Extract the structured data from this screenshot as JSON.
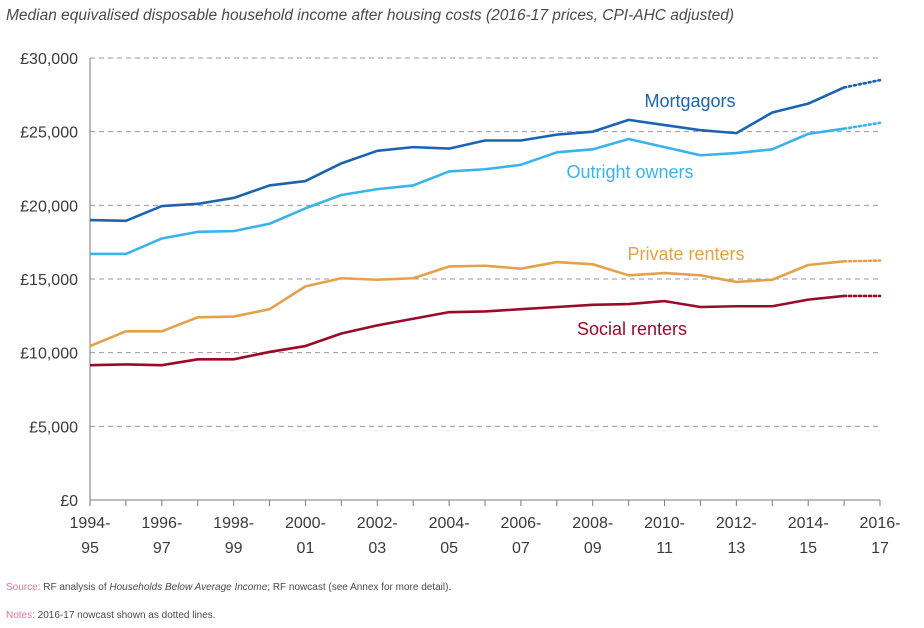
{
  "chart_data": {
    "type": "line",
    "title": "Median equivalised disposable household income after housing costs (2016-17 prices, CPI-AHC adjusted)",
    "xlabel": "",
    "ylabel": "",
    "ylim": [
      0,
      30000
    ],
    "yticks": [
      0,
      5000,
      10000,
      15000,
      20000,
      25000,
      30000
    ],
    "ytick_labels": [
      "£0",
      "£5,000",
      "£10,000",
      "£15,000",
      "£20,000",
      "£25,000",
      "£30,000"
    ],
    "grid": "horizontal dashed",
    "x": [
      "1994-95",
      "1995-96",
      "1996-97",
      "1997-98",
      "1998-99",
      "1999-00",
      "2000-01",
      "2001-02",
      "2002-03",
      "2003-04",
      "2004-05",
      "2005-06",
      "2006-07",
      "2007-08",
      "2008-09",
      "2009-10",
      "2010-11",
      "2011-12",
      "2012-13",
      "2013-14",
      "2014-15",
      "2015-16",
      "2016-17"
    ],
    "xtick_labels": [
      {
        "top": "1994-",
        "bottom": "95"
      },
      {
        "top": "1996-",
        "bottom": "97"
      },
      {
        "top": "1998-",
        "bottom": "99"
      },
      {
        "top": "2000-",
        "bottom": "01"
      },
      {
        "top": "2002-",
        "bottom": "03"
      },
      {
        "top": "2004-",
        "bottom": "05"
      },
      {
        "top": "2006-",
        "bottom": "07"
      },
      {
        "top": "2008-",
        "bottom": "09"
      },
      {
        "top": "2010-",
        "bottom": "11"
      },
      {
        "top": "2012-",
        "bottom": "13"
      },
      {
        "top": "2014-",
        "bottom": "15"
      },
      {
        "top": "2016-",
        "bottom": "17"
      }
    ],
    "nowcast_from": "2015-16",
    "series": [
      {
        "name": "Mortgagors",
        "color": "#1a64b0",
        "values": [
          19000,
          18950,
          19950,
          20100,
          20500,
          21350,
          21650,
          22850,
          23700,
          23950,
          23850,
          24400,
          24400,
          24800,
          25000,
          25800,
          25450,
          25100,
          24900,
          26300,
          26900,
          28000,
          28500
        ]
      },
      {
        "name": "Outright owners",
        "color": "#3ab3ea",
        "values": [
          16700,
          16700,
          17750,
          18200,
          18250,
          18750,
          19800,
          20700,
          21100,
          21350,
          22300,
          22450,
          22750,
          23600,
          23800,
          24500,
          23950,
          23400,
          23550,
          23800,
          24850,
          25200,
          25600
        ]
      },
      {
        "name": "Private renters",
        "color": "#e2a24a",
        "values": [
          10450,
          11450,
          11450,
          12400,
          12450,
          12950,
          14500,
          15050,
          14950,
          15050,
          15850,
          15900,
          15700,
          16150,
          16000,
          15250,
          15400,
          15250,
          14800,
          14950,
          15950,
          16200,
          16250
        ]
      },
      {
        "name": "Social renters",
        "color": "#990b2a",
        "values": [
          9150,
          9200,
          9150,
          9550,
          9550,
          10050,
          10450,
          11300,
          11850,
          12300,
          12750,
          12800,
          12950,
          13100,
          13250,
          13300,
          13500,
          13100,
          13150,
          13150,
          13600,
          13850,
          13850
        ]
      }
    ]
  },
  "footer": {
    "source_label": "Source:",
    "source_text_1": " RF analysis of ",
    "source_text_italic": "Households Below Average Income",
    "source_text_2": "; RF nowcast (see Annex for more detail).",
    "notes_label": "Notes:",
    "notes_text": " 2016-17 nowcast shown as dotted lines."
  }
}
